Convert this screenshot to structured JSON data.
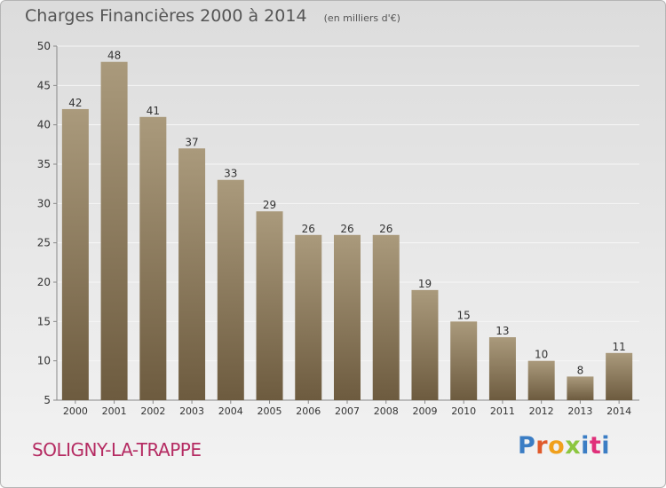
{
  "header": {
    "title": "Charges Financières 2000 à 2014",
    "subtitle": "(en milliers d'€)"
  },
  "location_label": "SOLIGNY-LA-TRAPPE",
  "brand": {
    "text": "Proxiti",
    "letter_colors": [
      "#3b7dc4",
      "#e05a2b",
      "#f0a01c",
      "#8cc63f",
      "#3b7dc4",
      "#e0307a",
      "#3b7dc4"
    ]
  },
  "chart_data": {
    "type": "bar",
    "categories": [
      "2000",
      "2001",
      "2002",
      "2003",
      "2004",
      "2005",
      "2006",
      "2007",
      "2008",
      "2009",
      "2010",
      "2011",
      "2012",
      "2013",
      "2014"
    ],
    "values": [
      42,
      48,
      41,
      37,
      33,
      29,
      26,
      26,
      26,
      19,
      15,
      13,
      10,
      8,
      11
    ],
    "data_labels": [
      "42",
      "48",
      "41",
      "37",
      "33",
      "29",
      "26",
      "26",
      "26",
      "19",
      "15",
      "13",
      "10",
      "8",
      "11"
    ],
    "title": "Charges Financières 2000 à 2014",
    "subtitle": "(en milliers d'€)",
    "xlabel": "",
    "ylabel": "",
    "ylim": [
      5,
      50
    ],
    "yticks": [
      5,
      10,
      15,
      20,
      25,
      30,
      35,
      40,
      45,
      50
    ],
    "ytick_labels": [
      "5",
      "10",
      "15",
      "20",
      "25",
      "30",
      "35",
      "40",
      "45",
      "50"
    ],
    "grid": true,
    "legend": "none",
    "colors": {
      "bar_light": "#aa9a7c",
      "bar_dark": "#6d5b3f",
      "grid": "#f6f6f6",
      "axis": "#888888",
      "text": "#333333"
    }
  }
}
